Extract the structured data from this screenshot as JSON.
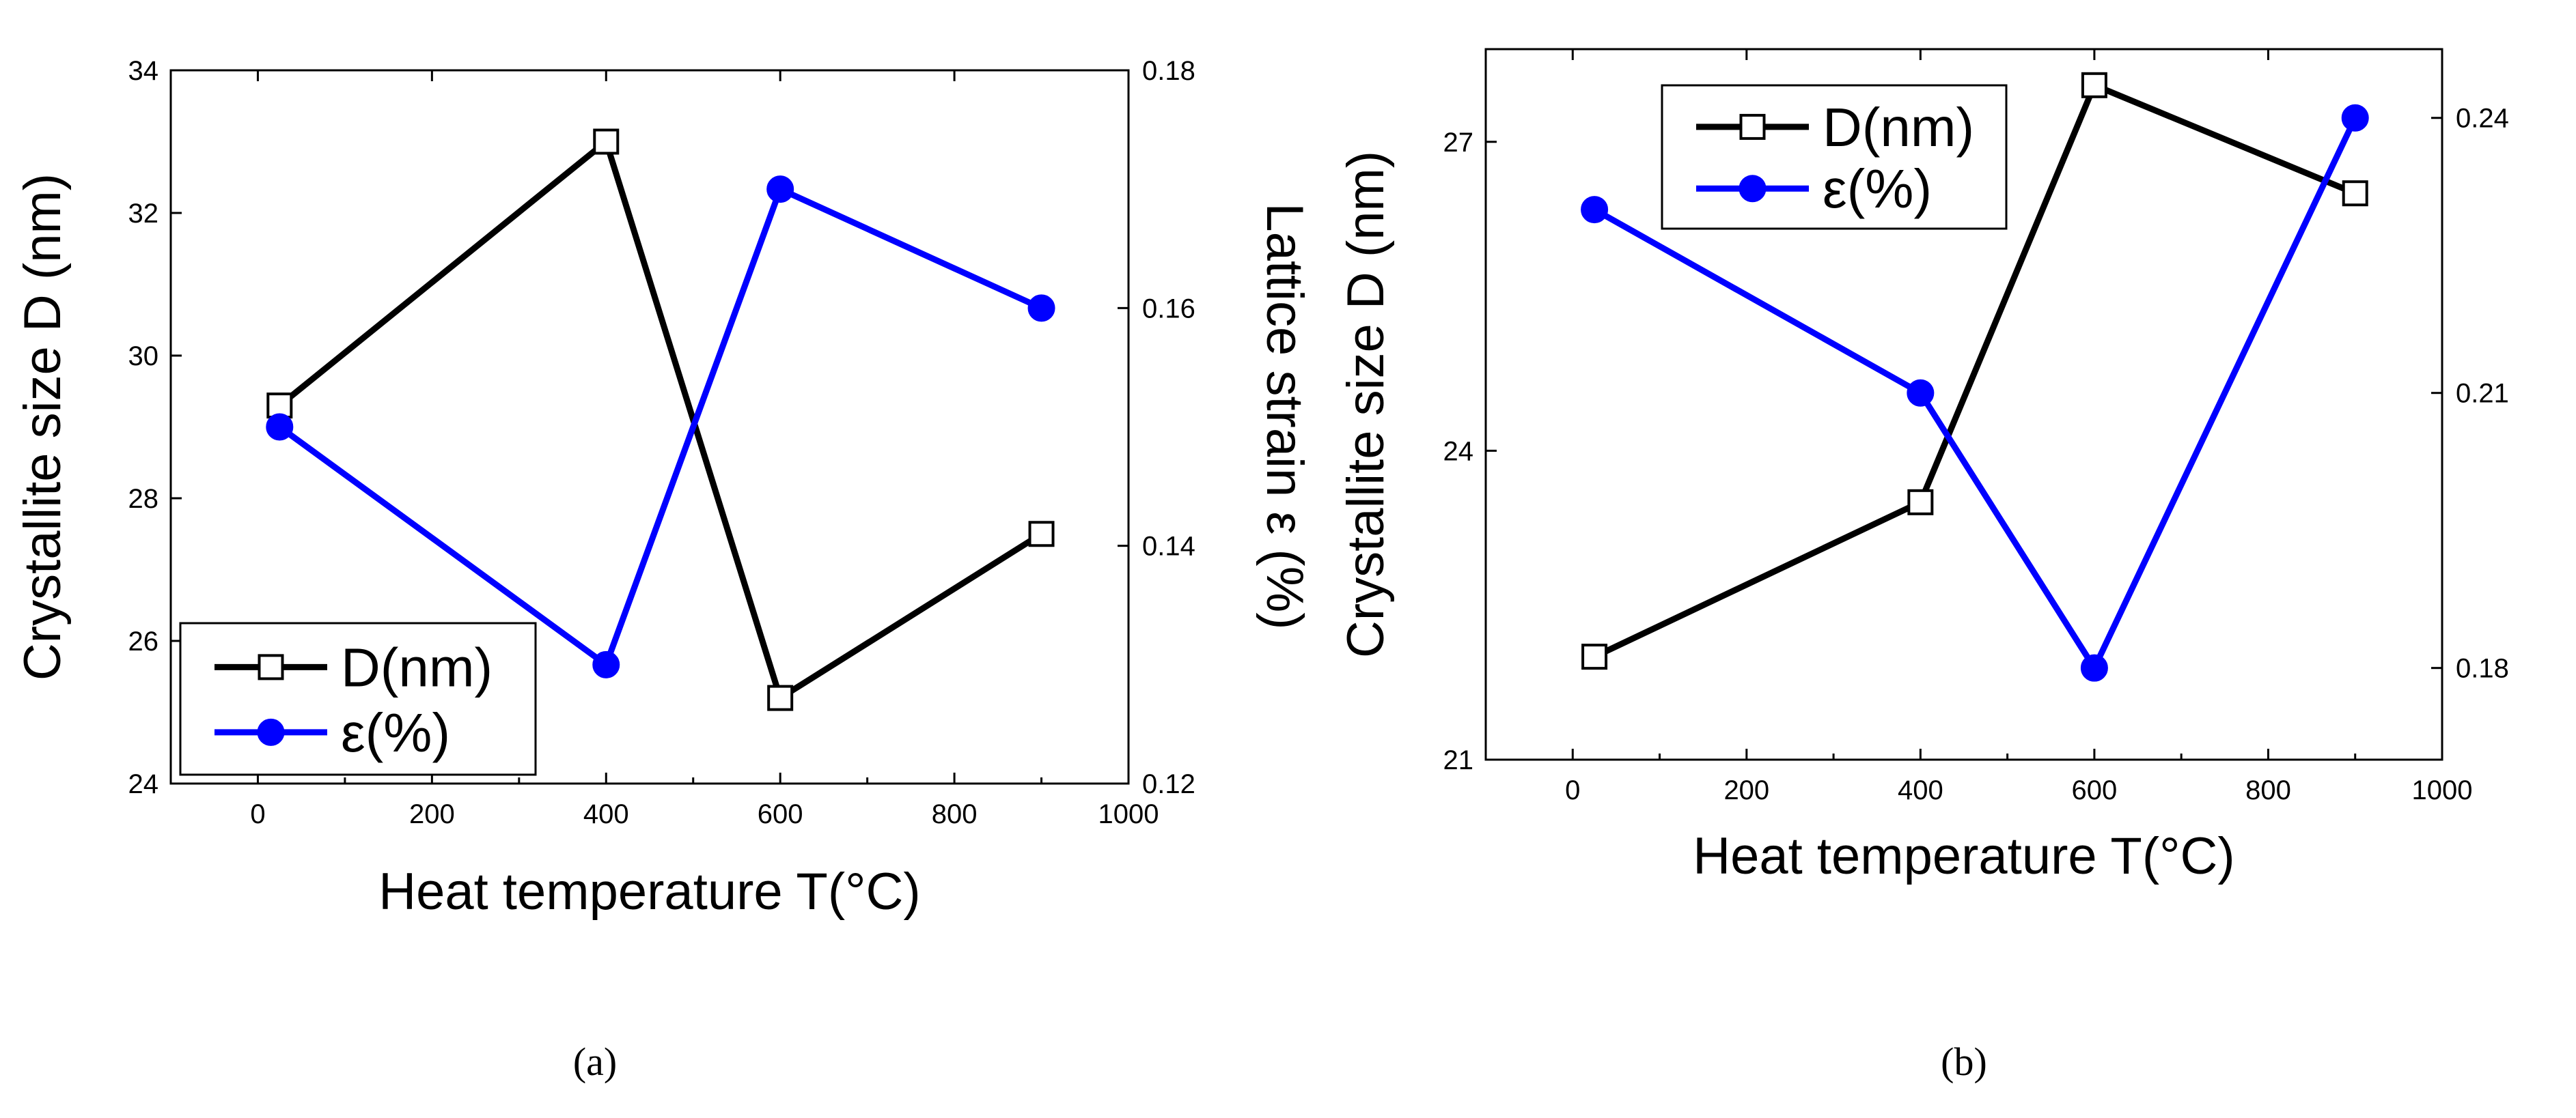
{
  "chart_data": [
    {
      "type": "line",
      "panel_label": "(a)",
      "xlabel": "Heat temperature T(°C)",
      "ylabel_left": "Crystallite size D (nm)",
      "ylabel_right": "Lattice strain  ε (%)",
      "xlim": [
        -100,
        1000
      ],
      "xticks": [
        0,
        200,
        400,
        600,
        800,
        1000
      ],
      "ylim_left": [
        24,
        34
      ],
      "yticks_left": [
        24,
        26,
        28,
        30,
        32,
        34
      ],
      "ylim_right": [
        0.12,
        0.18
      ],
      "yticks_right": [
        "0.12",
        "0.14",
        "0.16",
        "0.18"
      ],
      "legend_position": "bottom-left",
      "series": [
        {
          "name": "D(nm)",
          "axis": "left",
          "color": "#000000",
          "marker": "open-square",
          "x": [
            25,
            400,
            600,
            900
          ],
          "values": [
            29.3,
            33.0,
            25.2,
            27.5
          ]
        },
        {
          "name": "ε(%)",
          "axis": "right",
          "color": "#0000ff",
          "marker": "filled-circle",
          "x": [
            25,
            400,
            600,
            900
          ],
          "values": [
            0.15,
            0.13,
            0.17,
            0.16
          ]
        }
      ]
    },
    {
      "type": "line",
      "panel_label": "(b)",
      "xlabel": "Heat temperature T(°C)",
      "ylabel_left": "Crystallite size D (nm)",
      "ylabel_right": "",
      "xlim": [
        -100,
        1000
      ],
      "xticks": [
        0,
        200,
        400,
        600,
        800,
        1000
      ],
      "ylim_left": [
        21,
        27.9
      ],
      "yticks_left": [
        21,
        24,
        27
      ],
      "ylim_right": [
        0.17,
        0.2475
      ],
      "yticks_right": [
        "0.18",
        "0.21",
        "0.24"
      ],
      "legend_position": "top-left",
      "series": [
        {
          "name": "D(nm)",
          "axis": "left",
          "color": "#000000",
          "marker": "open-square",
          "x": [
            25,
            400,
            600,
            900
          ],
          "values": [
            22.0,
            23.5,
            27.55,
            26.5
          ]
        },
        {
          "name": "ε(%)",
          "axis": "right",
          "color": "#0000ff",
          "marker": "filled-circle",
          "x": [
            25,
            400,
            600,
            900
          ],
          "values": [
            0.23,
            0.21,
            0.18,
            0.24
          ]
        }
      ]
    }
  ]
}
